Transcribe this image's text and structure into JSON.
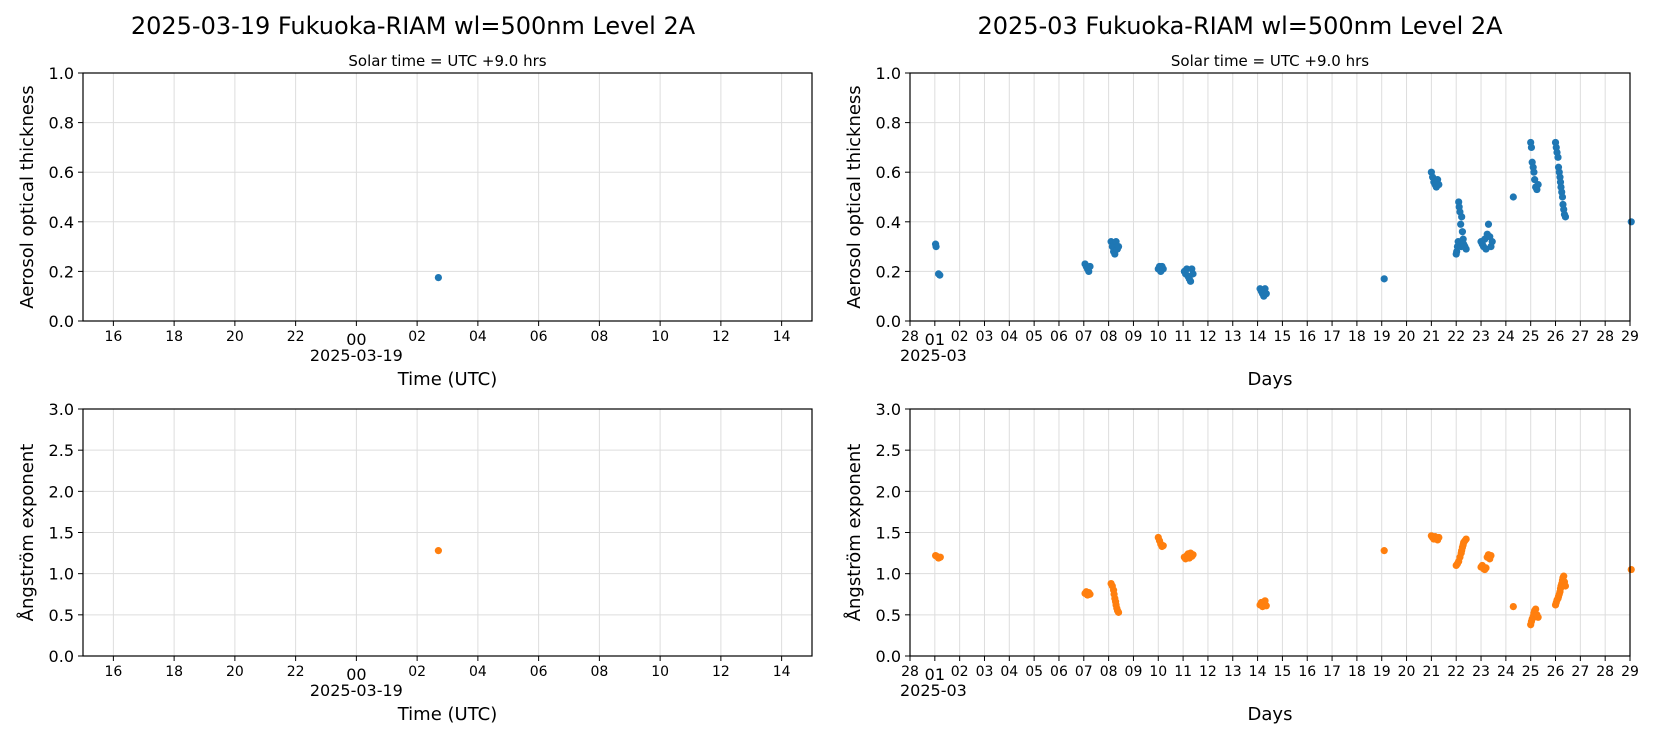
{
  "chart_data": [
    {
      "id": "daily-aot",
      "type": "scatter",
      "title": "2025-03-19  Fukuoka-RIAM  wl=500nm  Level 2A",
      "subtitle": "Solar time = UTC +9.0 hrs",
      "xlabel": "Time (UTC)",
      "ylabel": "Aerosol optical thickness",
      "xlim": [
        -9,
        15
      ],
      "ylim": [
        0,
        1.0
      ],
      "yticks": [
        "0.0",
        "0.2",
        "0.4",
        "0.6",
        "0.8",
        "1.0"
      ],
      "ytick_values": [
        0,
        0.2,
        0.4,
        0.6,
        0.8,
        1.0
      ],
      "xticks": [
        "16",
        "18",
        "20",
        "22",
        "00",
        "02",
        "04",
        "06",
        "08",
        "10",
        "12",
        "14"
      ],
      "xtick_values": [
        -8,
        -6,
        -4,
        -2,
        0,
        2,
        4,
        6,
        8,
        10,
        12,
        14
      ],
      "x_sublabel": "2025-03-19",
      "grid": true,
      "color": "#1f77b4",
      "points": [
        [
          2.7,
          0.175
        ]
      ]
    },
    {
      "id": "monthly-aot",
      "type": "scatter",
      "title": "2025-03  Fukuoka-RIAM  wl=500nm  Level 2A",
      "subtitle": "Solar time = UTC +9.0 hrs",
      "xlabel": "Days",
      "ylabel": "Aerosol optical thickness",
      "xlim": [
        0,
        29
      ],
      "ylim": [
        0,
        1.0
      ],
      "yticks": [
        "0.0",
        "0.2",
        "0.4",
        "0.6",
        "0.8",
        "1.0"
      ],
      "ytick_values": [
        0,
        0.2,
        0.4,
        0.6,
        0.8,
        1.0
      ],
      "xticks": [
        "28",
        "01",
        "02",
        "03",
        "04",
        "05",
        "06",
        "07",
        "08",
        "09",
        "10",
        "11",
        "12",
        "13",
        "14",
        "15",
        "16",
        "17",
        "18",
        "19",
        "20",
        "21",
        "22",
        "23",
        "24",
        "25",
        "26",
        "27",
        "28",
        "29"
      ],
      "xtick_values": [
        0,
        1,
        2,
        3,
        4,
        5,
        6,
        7,
        8,
        9,
        10,
        11,
        12,
        13,
        14,
        15,
        16,
        17,
        18,
        19,
        20,
        21,
        22,
        23,
        24,
        25,
        26,
        27,
        28,
        29
      ],
      "x_sublabel": "2025-03",
      "grid": true,
      "color": "#1f77b4",
      "points": [
        [
          1.03,
          0.31
        ],
        [
          1.05,
          0.3
        ],
        [
          1.15,
          0.19
        ],
        [
          1.2,
          0.185
        ],
        [
          7.05,
          0.23
        ],
        [
          7.1,
          0.22
        ],
        [
          7.15,
          0.21
        ],
        [
          7.2,
          0.2
        ],
        [
          7.25,
          0.22
        ],
        [
          8.1,
          0.32
        ],
        [
          8.15,
          0.3
        ],
        [
          8.2,
          0.28
        ],
        [
          8.25,
          0.27
        ],
        [
          8.3,
          0.32
        ],
        [
          8.35,
          0.29
        ],
        [
          8.4,
          0.3
        ],
        [
          10.0,
          0.21
        ],
        [
          10.05,
          0.22
        ],
        [
          10.1,
          0.2
        ],
        [
          10.15,
          0.22
        ],
        [
          10.2,
          0.21
        ],
        [
          11.05,
          0.2
        ],
        [
          11.1,
          0.19
        ],
        [
          11.15,
          0.21
        ],
        [
          11.2,
          0.18
        ],
        [
          11.25,
          0.17
        ],
        [
          11.3,
          0.16
        ],
        [
          11.35,
          0.21
        ],
        [
          11.4,
          0.19
        ],
        [
          14.1,
          0.13
        ],
        [
          14.15,
          0.12
        ],
        [
          14.2,
          0.11
        ],
        [
          14.25,
          0.1
        ],
        [
          14.3,
          0.13
        ],
        [
          14.35,
          0.11
        ],
        [
          19.1,
          0.17
        ],
        [
          21.0,
          0.6
        ],
        [
          21.05,
          0.58
        ],
        [
          21.1,
          0.56
        ],
        [
          21.15,
          0.55
        ],
        [
          21.2,
          0.54
        ],
        [
          21.25,
          0.57
        ],
        [
          21.3,
          0.55
        ],
        [
          22.0,
          0.27
        ],
        [
          22.02,
          0.28
        ],
        [
          22.05,
          0.3
        ],
        [
          22.08,
          0.32
        ],
        [
          22.1,
          0.48
        ],
        [
          22.12,
          0.46
        ],
        [
          22.15,
          0.44
        ],
        [
          22.18,
          0.39
        ],
        [
          22.2,
          0.3
        ],
        [
          22.22,
          0.42
        ],
        [
          22.25,
          0.36
        ],
        [
          22.28,
          0.33
        ],
        [
          22.3,
          0.31
        ],
        [
          22.35,
          0.3
        ],
        [
          22.4,
          0.29
        ],
        [
          23.0,
          0.32
        ],
        [
          23.05,
          0.31
        ],
        [
          23.1,
          0.3
        ],
        [
          23.15,
          0.33
        ],
        [
          23.2,
          0.29
        ],
        [
          23.25,
          0.35
        ],
        [
          23.3,
          0.39
        ],
        [
          23.35,
          0.34
        ],
        [
          23.4,
          0.3
        ],
        [
          23.45,
          0.32
        ],
        [
          24.3,
          0.5
        ],
        [
          25.0,
          0.72
        ],
        [
          25.03,
          0.7
        ],
        [
          25.06,
          0.64
        ],
        [
          25.1,
          0.62
        ],
        [
          25.13,
          0.6
        ],
        [
          25.16,
          0.57
        ],
        [
          25.2,
          0.54
        ],
        [
          25.25,
          0.53
        ],
        [
          25.3,
          0.55
        ],
        [
          26.0,
          0.72
        ],
        [
          26.03,
          0.7
        ],
        [
          26.06,
          0.68
        ],
        [
          26.1,
          0.66
        ],
        [
          26.12,
          0.62
        ],
        [
          26.15,
          0.6
        ],
        [
          26.18,
          0.58
        ],
        [
          26.2,
          0.56
        ],
        [
          26.22,
          0.54
        ],
        [
          26.25,
          0.52
        ],
        [
          26.28,
          0.5
        ],
        [
          26.3,
          0.47
        ],
        [
          26.33,
          0.45
        ],
        [
          26.36,
          0.43
        ],
        [
          26.4,
          0.42
        ],
        [
          29.05,
          0.4
        ]
      ]
    },
    {
      "id": "daily-angstrom",
      "type": "scatter",
      "title": "",
      "subtitle": "",
      "xlabel": "Time (UTC)",
      "ylabel": "Ångström exponent",
      "xlim": [
        -9,
        15
      ],
      "ylim": [
        0,
        3.0
      ],
      "yticks": [
        "0.0",
        "0.5",
        "1.0",
        "1.5",
        "2.0",
        "2.5",
        "3.0"
      ],
      "ytick_values": [
        0,
        0.5,
        1.0,
        1.5,
        2.0,
        2.5,
        3.0
      ],
      "xticks": [
        "16",
        "18",
        "20",
        "22",
        "00",
        "02",
        "04",
        "06",
        "08",
        "10",
        "12",
        "14"
      ],
      "xtick_values": [
        -8,
        -6,
        -4,
        -2,
        0,
        2,
        4,
        6,
        8,
        10,
        12,
        14
      ],
      "x_sublabel": "2025-03-19",
      "grid": true,
      "color": "#ff7f0e",
      "points": [
        [
          2.7,
          1.28
        ]
      ]
    },
    {
      "id": "monthly-angstrom",
      "type": "scatter",
      "title": "",
      "subtitle": "",
      "xlabel": "Days",
      "ylabel": "Ångström exponent",
      "xlim": [
        0,
        29
      ],
      "ylim": [
        0,
        3.0
      ],
      "yticks": [
        "0.0",
        "0.5",
        "1.0",
        "1.5",
        "2.0",
        "2.5",
        "3.0"
      ],
      "ytick_values": [
        0,
        0.5,
        1.0,
        1.5,
        2.0,
        2.5,
        3.0
      ],
      "xticks": [
        "28",
        "01",
        "02",
        "03",
        "04",
        "05",
        "06",
        "07",
        "08",
        "09",
        "10",
        "11",
        "12",
        "13",
        "14",
        "15",
        "16",
        "17",
        "18",
        "19",
        "20",
        "21",
        "22",
        "23",
        "24",
        "25",
        "26",
        "27",
        "28",
        "29"
      ],
      "xtick_values": [
        0,
        1,
        2,
        3,
        4,
        5,
        6,
        7,
        8,
        9,
        10,
        11,
        12,
        13,
        14,
        15,
        16,
        17,
        18,
        19,
        20,
        21,
        22,
        23,
        24,
        25,
        26,
        27,
        28,
        29
      ],
      "x_sublabel": "2025-03",
      "grid": true,
      "color": "#ff7f0e",
      "points": [
        [
          1.03,
          1.22
        ],
        [
          1.08,
          1.21
        ],
        [
          1.15,
          1.19
        ],
        [
          1.22,
          1.2
        ],
        [
          7.05,
          0.76
        ],
        [
          7.1,
          0.78
        ],
        [
          7.15,
          0.74
        ],
        [
          7.2,
          0.77
        ],
        [
          7.25,
          0.75
        ],
        [
          8.1,
          0.88
        ],
        [
          8.15,
          0.85
        ],
        [
          8.2,
          0.8
        ],
        [
          8.22,
          0.75
        ],
        [
          8.25,
          0.7
        ],
        [
          8.28,
          0.66
        ],
        [
          8.3,
          0.62
        ],
        [
          8.33,
          0.58
        ],
        [
          8.36,
          0.55
        ],
        [
          8.4,
          0.53
        ],
        [
          10.0,
          1.44
        ],
        [
          10.05,
          1.4
        ],
        [
          10.1,
          1.36
        ],
        [
          10.15,
          1.33
        ],
        [
          10.2,
          1.34
        ],
        [
          11.05,
          1.2
        ],
        [
          11.1,
          1.18
        ],
        [
          11.15,
          1.22
        ],
        [
          11.2,
          1.24
        ],
        [
          11.25,
          1.19
        ],
        [
          11.3,
          1.25
        ],
        [
          11.35,
          1.21
        ],
        [
          11.4,
          1.23
        ],
        [
          14.1,
          0.62
        ],
        [
          14.15,
          0.65
        ],
        [
          14.2,
          0.6
        ],
        [
          14.25,
          0.63
        ],
        [
          14.3,
          0.67
        ],
        [
          14.35,
          0.61
        ],
        [
          19.1,
          1.28
        ],
        [
          21.0,
          1.46
        ],
        [
          21.05,
          1.44
        ],
        [
          21.1,
          1.42
        ],
        [
          21.15,
          1.45
        ],
        [
          21.2,
          1.43
        ],
        [
          21.25,
          1.41
        ],
        [
          21.3,
          1.44
        ],
        [
          22.0,
          1.1
        ],
        [
          22.05,
          1.12
        ],
        [
          22.1,
          1.15
        ],
        [
          22.15,
          1.2
        ],
        [
          22.2,
          1.25
        ],
        [
          22.22,
          1.28
        ],
        [
          22.25,
          1.32
        ],
        [
          22.28,
          1.35
        ],
        [
          22.3,
          1.38
        ],
        [
          22.35,
          1.4
        ],
        [
          22.4,
          1.42
        ],
        [
          23.0,
          1.08
        ],
        [
          23.05,
          1.1
        ],
        [
          23.1,
          1.06
        ],
        [
          23.15,
          1.05
        ],
        [
          23.2,
          1.07
        ],
        [
          23.25,
          1.2
        ],
        [
          23.3,
          1.23
        ],
        [
          23.35,
          1.18
        ],
        [
          23.4,
          1.22
        ],
        [
          24.3,
          0.6
        ],
        [
          25.0,
          0.38
        ],
        [
          25.03,
          0.42
        ],
        [
          25.06,
          0.45
        ],
        [
          25.1,
          0.48
        ],
        [
          25.13,
          0.52
        ],
        [
          25.16,
          0.55
        ],
        [
          25.2,
          0.57
        ],
        [
          25.25,
          0.5
        ],
        [
          25.3,
          0.47
        ],
        [
          26.0,
          0.62
        ],
        [
          26.03,
          0.65
        ],
        [
          26.06,
          0.68
        ],
        [
          26.1,
          0.7
        ],
        [
          26.12,
          0.72
        ],
        [
          26.15,
          0.75
        ],
        [
          26.18,
          0.78
        ],
        [
          26.2,
          0.82
        ],
        [
          26.22,
          0.85
        ],
        [
          26.25,
          0.88
        ],
        [
          26.28,
          0.92
        ],
        [
          26.3,
          0.95
        ],
        [
          26.33,
          0.97
        ],
        [
          26.36,
          0.9
        ],
        [
          26.4,
          0.85
        ],
        [
          29.05,
          1.05
        ]
      ]
    }
  ]
}
